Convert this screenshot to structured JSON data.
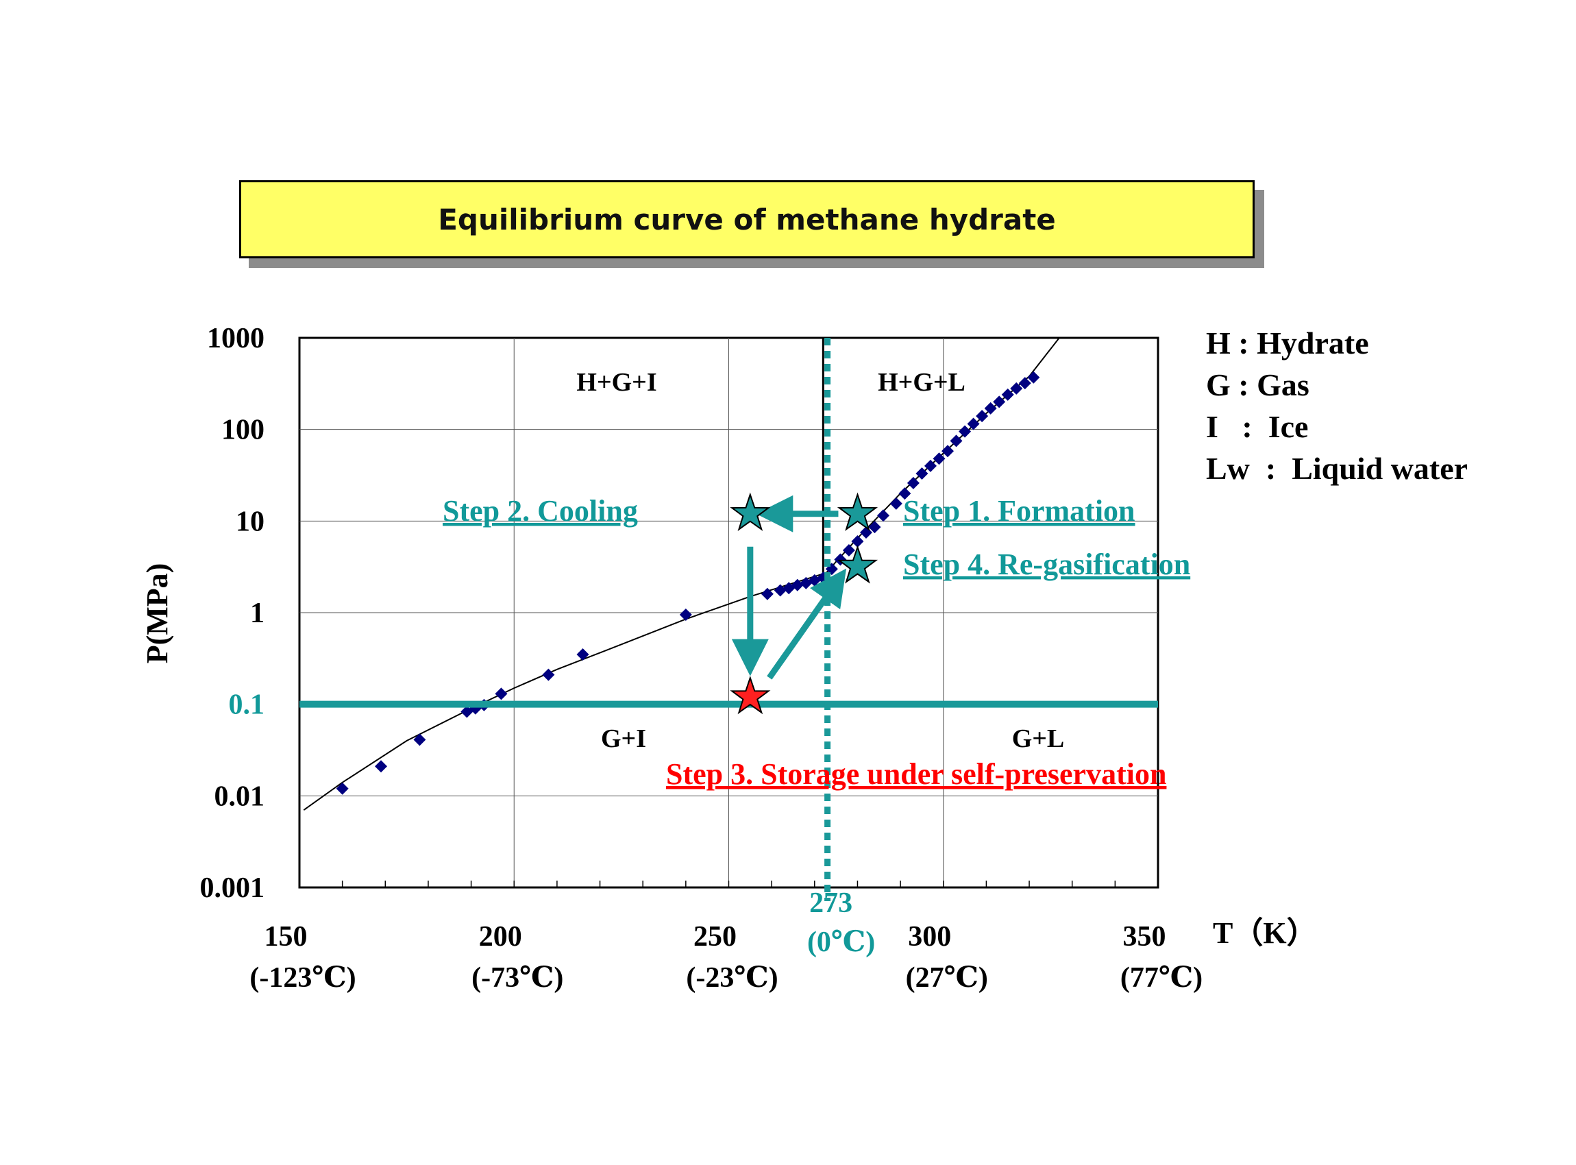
{
  "title": "Equilibrium curve of methane hydrate",
  "legend": [
    "H : Hydrate",
    "G : Gas",
    "I   :  Ice",
    "Lw  :  Liquid water"
  ],
  "chart_data": {
    "type": "scatter",
    "ylabel": "P(MPa)",
    "xunit": "T（K）",
    "x_axis_range": [
      150,
      350
    ],
    "y_axis_range": [
      0.001,
      1000
    ],
    "y_scale": "log",
    "grid": true,
    "yticks": [
      "1000",
      "100",
      "10",
      "1",
      "0.1",
      "0.01",
      "0.001"
    ],
    "ytick_teal": "0.1",
    "xticks": [
      {
        "value": 150,
        "label": "150",
        "sub": "(-123℃)"
      },
      {
        "value": 200,
        "label": "200",
        "sub": "(-73℃)"
      },
      {
        "value": 250,
        "label": "250",
        "sub": "(-23℃)"
      },
      {
        "value": 300,
        "label": "300",
        "sub": "(27℃)"
      },
      {
        "value": 350,
        "label": "350",
        "sub": "(77℃)"
      }
    ],
    "marker_line": {
      "x": 273,
      "label": "273",
      "sub": "(0℃)"
    },
    "pressure_line": {
      "y": 0.1
    },
    "regions": [
      "H+G+I",
      "H+G+L",
      "G+I",
      "G+L"
    ],
    "equilibrium_curve": [
      [
        151,
        0.007
      ],
      [
        160,
        0.014
      ],
      [
        175,
        0.04
      ],
      [
        190,
        0.09
      ],
      [
        200,
        0.15
      ],
      [
        210,
        0.24
      ],
      [
        225,
        0.45
      ],
      [
        240,
        0.85
      ],
      [
        255,
        1.5
      ],
      [
        265,
        2.1
      ],
      [
        272.5,
        2.7
      ],
      [
        273,
        2.8
      ],
      [
        275,
        3.6
      ],
      [
        280,
        6.5
      ],
      [
        290,
        20
      ],
      [
        300,
        55
      ],
      [
        310,
        150
      ],
      [
        320,
        380
      ],
      [
        327,
        1000
      ]
    ],
    "phase_boundary_vertical": {
      "x": 272,
      "y_from": 2.7,
      "y_to": 1000
    },
    "series": [
      {
        "values": [
          [
            160,
            0.012
          ],
          [
            169,
            0.021
          ],
          [
            178,
            0.041
          ],
          [
            189,
            0.083
          ],
          [
            191,
            0.09
          ],
          [
            193,
            0.098
          ],
          [
            197,
            0.13
          ],
          [
            208,
            0.21
          ],
          [
            216,
            0.35
          ],
          [
            240,
            0.95
          ],
          [
            259,
            1.6
          ],
          [
            262,
            1.75
          ],
          [
            264,
            1.85
          ],
          [
            266,
            2.0
          ],
          [
            268,
            2.1
          ],
          [
            270,
            2.25
          ],
          [
            272,
            2.4
          ],
          [
            274,
            3.0
          ],
          [
            276,
            3.8
          ],
          [
            278,
            4.8
          ],
          [
            280,
            6.0
          ],
          [
            282,
            7.5
          ],
          [
            284,
            8.6
          ],
          [
            286,
            11.5
          ],
          [
            289,
            15.5
          ],
          [
            291,
            20
          ],
          [
            293,
            26
          ],
          [
            295,
            33
          ],
          [
            297,
            40
          ],
          [
            299,
            48
          ],
          [
            301,
            58
          ],
          [
            303,
            75
          ],
          [
            305,
            95
          ],
          [
            307,
            115
          ],
          [
            309,
            140
          ],
          [
            311,
            170
          ],
          [
            313,
            200
          ],
          [
            315,
            240
          ],
          [
            317,
            280
          ],
          [
            319,
            320
          ],
          [
            321,
            370
          ]
        ]
      }
    ],
    "steps": [
      {
        "label": "Step 1. Formation",
        "x": 280,
        "y": 12,
        "color": "#1a9999"
      },
      {
        "label": "Step 2. Cooling",
        "x": 255,
        "y": 12,
        "color": "#1a9999"
      },
      {
        "label": "Step 3. Storage under self-preservation",
        "x": 255,
        "y": 0.12,
        "color": "#ff2020"
      },
      {
        "label": "Step 4. Re-gasification",
        "x": 280,
        "y": 3.2,
        "color": "#1a9999"
      }
    ],
    "colors": {
      "teal": "#119999",
      "marker": "#000080",
      "red": "#ff0000",
      "curve": "#000000"
    }
  }
}
